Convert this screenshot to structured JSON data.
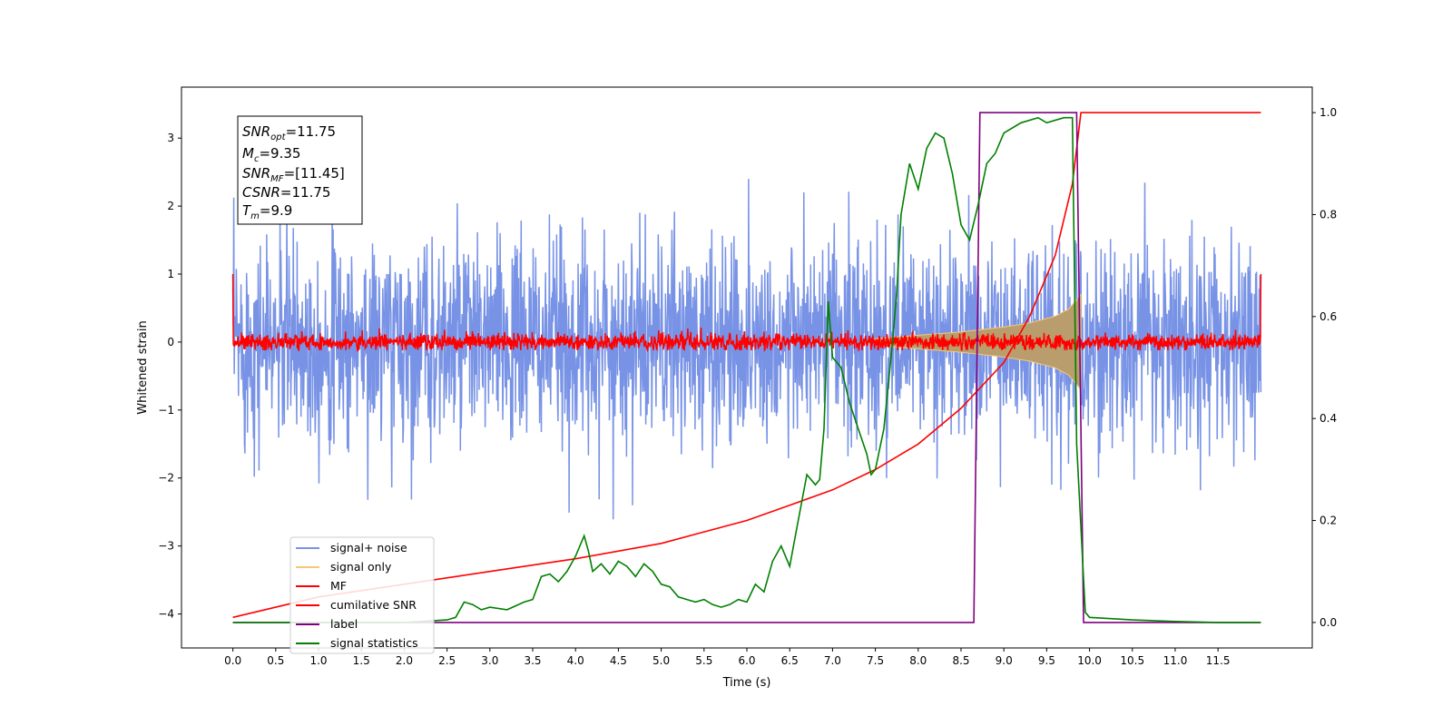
{
  "chart_data": {
    "type": "line",
    "xlabel": "Time (s)",
    "ylabel": "Whitened strain",
    "xlim": [
      -0.6,
      12.6
    ],
    "ylim": [
      -4.5,
      3.75
    ],
    "ylim_right": [
      -0.05,
      1.05
    ],
    "x_ticks": [
      "0.0",
      "0.5",
      "1.0",
      "1.5",
      "2.0",
      "2.5",
      "3.0",
      "3.5",
      "4.0",
      "4.5",
      "5.0",
      "5.5",
      "6.0",
      "6.5",
      "7.0",
      "7.5",
      "8.0",
      "8.5",
      "9.0",
      "9.5",
      "10.0",
      "10.5",
      "11.0",
      "11.5"
    ],
    "y_ticks": [
      "3",
      "2",
      "1",
      "0",
      "−1",
      "−2",
      "−3",
      "−4"
    ],
    "y_ticks_right": [
      "1.0",
      "0.8",
      "0.6",
      "0.4",
      "0.2",
      "0.0"
    ],
    "grid": false,
    "legend_position": "lower-left",
    "annotation": {
      "snr_opt": {
        "sym": "SNR",
        "sub": "opt",
        "value": "=11.75"
      },
      "mc": {
        "sym": "M",
        "sub": "c",
        "value": "=9.35"
      },
      "snr_mf": {
        "sym": "SNR",
        "sub": "MF",
        "value": "=[11.45]"
      },
      "csnr": {
        "sym": "CSNR",
        "sub": "",
        "value": "=11.75"
      },
      "tm": {
        "sym": "T",
        "sub": "m",
        "value": "=9.9"
      }
    },
    "series": [
      {
        "name": "signal+ noise",
        "color": "#7893e6",
        "axis": "left",
        "std": 0.75,
        "x_range": [
          0.0,
          12.0
        ]
      },
      {
        "name": "signal only",
        "color": "#f5c77a",
        "axis": "left",
        "envelope_x": [
          7.5,
          8.0,
          8.5,
          9.0,
          9.3,
          9.6,
          9.75,
          9.85,
          9.9
        ],
        "envelope_amp": [
          0.05,
          0.1,
          0.15,
          0.22,
          0.28,
          0.38,
          0.48,
          0.62,
          0.7
        ]
      },
      {
        "name": "MF",
        "color": "#ff0000",
        "axis": "left",
        "std": 0.06,
        "x_range": [
          0.0,
          12.0
        ]
      },
      {
        "name": "cumilative SNR",
        "color": "#ff0000",
        "axis": "right",
        "x": [
          0.0,
          1.0,
          2.0,
          3.0,
          4.0,
          5.0,
          6.0,
          6.5,
          7.0,
          7.5,
          8.0,
          8.5,
          9.0,
          9.3,
          9.6,
          9.8,
          9.9,
          12.0
        ],
        "y": [
          0.01,
          0.05,
          0.075,
          0.1,
          0.125,
          0.155,
          0.2,
          0.23,
          0.26,
          0.3,
          0.35,
          0.42,
          0.51,
          0.6,
          0.72,
          0.86,
          1.0,
          1.0
        ]
      },
      {
        "name": "label",
        "color": "#800080",
        "axis": "right",
        "x": [
          0.0,
          8.65,
          8.72,
          9.85,
          9.93,
          12.0
        ],
        "y": [
          0.0,
          0.0,
          1.0,
          1.0,
          0.0,
          0.0
        ]
      },
      {
        "name": "signal statistics",
        "color": "#008000",
        "axis": "right",
        "x": [
          0.0,
          1.0,
          2.0,
          2.5,
          2.6,
          2.7,
          2.8,
          2.9,
          3.0,
          3.2,
          3.4,
          3.5,
          3.6,
          3.7,
          3.8,
          3.9,
          4.0,
          4.1,
          4.15,
          4.2,
          4.3,
          4.4,
          4.5,
          4.6,
          4.7,
          4.8,
          4.9,
          5.0,
          5.1,
          5.2,
          5.3,
          5.4,
          5.5,
          5.6,
          5.7,
          5.8,
          5.9,
          6.0,
          6.1,
          6.2,
          6.3,
          6.4,
          6.5,
          6.6,
          6.7,
          6.8,
          6.85,
          6.9,
          6.95,
          7.0,
          7.1,
          7.2,
          7.3,
          7.4,
          7.45,
          7.5,
          7.6,
          7.7,
          7.75,
          7.8,
          7.9,
          8.0,
          8.1,
          8.2,
          8.3,
          8.4,
          8.5,
          8.6,
          8.7,
          8.8,
          8.9,
          9.0,
          9.2,
          9.4,
          9.5,
          9.7,
          9.8,
          9.85,
          9.95,
          10.0,
          10.5,
          11.0,
          11.5,
          12.0
        ],
        "y": [
          0.0,
          0.0,
          0.0,
          0.005,
          0.01,
          0.04,
          0.035,
          0.025,
          0.03,
          0.025,
          0.04,
          0.045,
          0.09,
          0.095,
          0.08,
          0.1,
          0.13,
          0.17,
          0.14,
          0.1,
          0.115,
          0.095,
          0.12,
          0.11,
          0.09,
          0.115,
          0.1,
          0.075,
          0.07,
          0.05,
          0.045,
          0.04,
          0.045,
          0.035,
          0.03,
          0.035,
          0.045,
          0.04,
          0.075,
          0.06,
          0.12,
          0.15,
          0.11,
          0.2,
          0.29,
          0.27,
          0.28,
          0.38,
          0.63,
          0.52,
          0.5,
          0.43,
          0.38,
          0.33,
          0.29,
          0.3,
          0.38,
          0.55,
          0.65,
          0.8,
          0.9,
          0.85,
          0.93,
          0.96,
          0.95,
          0.88,
          0.78,
          0.75,
          0.82,
          0.9,
          0.92,
          0.96,
          0.98,
          0.99,
          0.98,
          0.99,
          0.99,
          0.35,
          0.02,
          0.01,
          0.005,
          0.002,
          0.0,
          0.0
        ]
      }
    ]
  }
}
